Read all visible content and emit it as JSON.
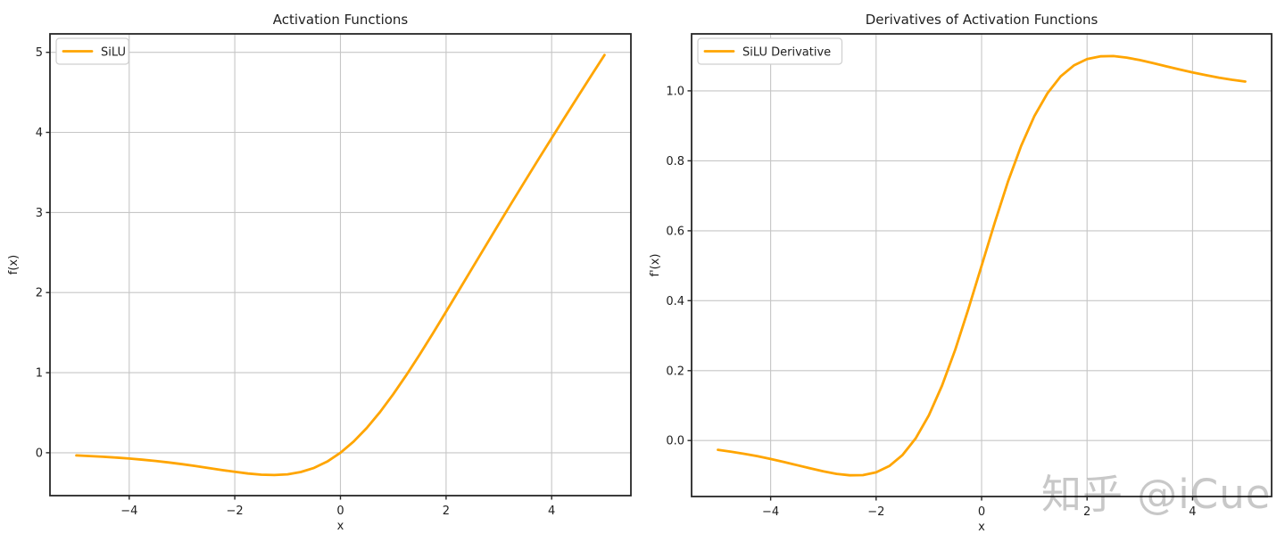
{
  "figure": {
    "background": "#ffffff",
    "text_color": "#1f1f1f",
    "grid_color": "#c6c6c6",
    "spine_color": "#262626",
    "accent_color": "#FFA500"
  },
  "watermark": {
    "text": "知乎 @iCue",
    "color": "#c8c8c8"
  },
  "chart_data": [
    {
      "type": "line",
      "title": "Activation Functions",
      "xlabel": "x",
      "ylabel": "f(x)",
      "xlim": [
        -5.5,
        5.5
      ],
      "ylim": [
        -0.535,
        5.23
      ],
      "xticks": [
        -4,
        -2,
        0,
        2,
        4
      ],
      "xtick_labels": [
        "−4",
        "−2",
        "0",
        "2",
        "4"
      ],
      "yticks": [
        0,
        1,
        2,
        3,
        4,
        5
      ],
      "ytick_labels": [
        "0",
        "1",
        "2",
        "3",
        "4",
        "5"
      ],
      "grid": true,
      "legend_position": "upper left",
      "series": [
        {
          "name": "SiLU",
          "color": "#FFA500",
          "x": [
            -5,
            -4.75,
            -4.5,
            -4.25,
            -4,
            -3.75,
            -3.5,
            -3.25,
            -3,
            -2.75,
            -2.5,
            -2.25,
            -2,
            -1.75,
            -1.5,
            -1.25,
            -1,
            -0.75,
            -0.5,
            -0.25,
            0,
            0.25,
            0.5,
            0.75,
            1,
            1.25,
            1.5,
            1.75,
            2,
            2.25,
            2.5,
            2.75,
            3,
            3.25,
            3.5,
            3.75,
            4,
            4.25,
            4.5,
            4.75,
            5
          ],
          "y": [
            -0.0335,
            -0.0407,
            -0.0494,
            -0.0598,
            -0.0719,
            -0.0862,
            -0.1026,
            -0.1213,
            -0.1423,
            -0.1652,
            -0.1896,
            -0.2145,
            -0.2384,
            -0.2591,
            -0.2736,
            -0.2784,
            -0.2689,
            -0.2406,
            -0.1888,
            -0.1095,
            0,
            0.1405,
            0.3112,
            0.5094,
            0.7311,
            0.9716,
            1.2264,
            1.4909,
            1.7616,
            2.0355,
            2.3104,
            2.5848,
            2.8577,
            3.1287,
            3.3974,
            3.6638,
            3.9281,
            4.1902,
            4.4506,
            4.7093,
            4.9665
          ]
        }
      ]
    },
    {
      "type": "line",
      "title": "Derivatives of Activation Functions",
      "xlabel": "x",
      "ylabel": "f'(x)",
      "xlim": [
        -5.5,
        5.5
      ],
      "ylim": [
        -0.16,
        1.163
      ],
      "xticks": [
        -4,
        -2,
        0,
        2,
        4
      ],
      "xtick_labels": [
        "−4",
        "−2",
        "0",
        "2",
        "4"
      ],
      "yticks": [
        0,
        0.2,
        0.4,
        0.6,
        0.8,
        1.0
      ],
      "ytick_labels": [
        "0.0",
        "0.2",
        "0.4",
        "0.6",
        "0.8",
        "1.0"
      ],
      "grid": true,
      "legend_position": "upper left",
      "series": [
        {
          "name": "SiLU Derivative",
          "color": "#FFA500",
          "x": [
            -5,
            -4.75,
            -4.5,
            -4.25,
            -4,
            -3.75,
            -3.5,
            -3.25,
            -3,
            -2.75,
            -2.5,
            -2.25,
            -2,
            -1.75,
            -1.5,
            -1.25,
            -1,
            -0.75,
            -0.5,
            -0.25,
            0,
            0.25,
            0.5,
            0.75,
            1,
            1.25,
            1.5,
            1.75,
            2,
            2.25,
            2.5,
            2.75,
            3,
            3.25,
            3.5,
            3.75,
            4,
            4.25,
            4.5,
            4.75,
            5
          ],
          "y": [
            -0.0265,
            -0.0318,
            -0.0379,
            -0.0449,
            -0.0527,
            -0.0612,
            -0.0703,
            -0.0795,
            -0.0881,
            -0.0952,
            -0.0994,
            -0.0987,
            -0.0908,
            -0.0727,
            -0.0413,
            0.0063,
            0.0723,
            0.1574,
            0.26,
            0.3763,
            0.5,
            0.6237,
            0.74,
            0.8426,
            0.9277,
            0.9936,
            1.0413,
            1.0727,
            1.0908,
            1.0987,
            1.0994,
            1.0952,
            1.0881,
            1.0795,
            1.0703,
            1.0612,
            1.0527,
            1.0449,
            1.0379,
            1.0318,
            1.0266
          ]
        }
      ]
    }
  ]
}
